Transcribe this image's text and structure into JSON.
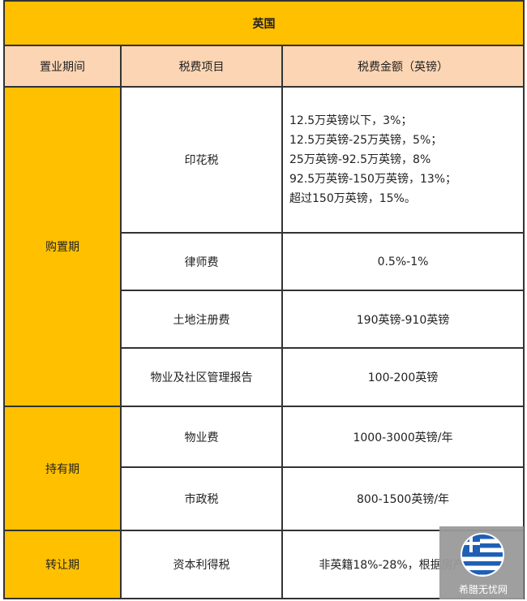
{
  "title": "英国",
  "headers": [
    "置业期间",
    "税费项目",
    "税费金额（英镑）"
  ],
  "periods": [
    "购置期",
    "持有期",
    "转让期"
  ],
  "rows": [
    {
      "item": "印花税",
      "amount_lines": [
        "12.5万英镑以下，3%；",
        "12.5万英镑-25万英镑，5%；",
        "25万英镑-92.5万英镑，8%",
        "92.5万英镑-150万英镑，13%；",
        "超过150万英镑，15%。"
      ]
    },
    {
      "item": "律师费",
      "amount": "0.5%-1%"
    },
    {
      "item": "土地注册费",
      "amount": "190英镑-910英镑"
    },
    {
      "item": "物业及社区管理报告",
      "amount": "100-200英镑"
    },
    {
      "item": "物业费",
      "amount": "1000-3000英镑/年"
    },
    {
      "item": "市政税",
      "amount": "800-1500英镑/年"
    },
    {
      "item": "资本利得税",
      "amount": "非英籍18%-28%，根据房产而定"
    }
  ],
  "watermark": {
    "text": "希腊无忧网",
    "icon": "greek-flag-icon"
  },
  "colors": {
    "gold": "#FFC000",
    "peach": "#FCD5B4"
  }
}
